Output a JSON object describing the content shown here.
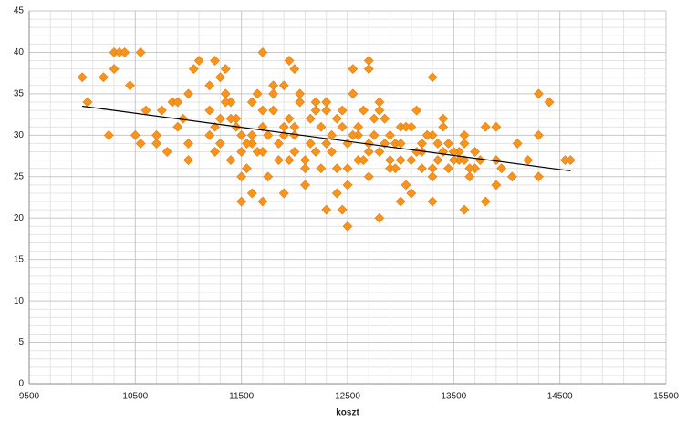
{
  "chart_data": {
    "type": "scatter",
    "x_label": "koszt",
    "color": "#f7941d",
    "x": [
      10000,
      10050,
      10200,
      10250,
      10300,
      10300,
      10350,
      10400,
      10550,
      10450,
      10500,
      10550,
      10600,
      10700,
      10700,
      10800,
      10750,
      10850,
      10900,
      10900,
      10950,
      11000,
      11000,
      11000,
      11050,
      11100,
      11200,
      11250,
      11300,
      11350,
      11700,
      11950,
      12000,
      12550,
      12700,
      12700,
      13300,
      14300,
      14400,
      14300,
      14300,
      14550,
      14600,
      14200,
      14050,
      14100,
      13600,
      13800,
      12500,
      12450,
      12800,
      12300,
      11500,
      11600,
      11700,
      11900,
      13000,
      13300,
      13900,
      13950,
      13800,
      13900,
      11200,
      11250,
      11300,
      11350,
      11400,
      11450,
      11500,
      11550,
      11600,
      11650,
      11700,
      11750,
      11800,
      11850,
      11900,
      11950,
      12000,
      12050,
      12100,
      12150,
      12200,
      12250,
      12300,
      12350,
      12400,
      12450,
      12500,
      12550,
      12600,
      12650,
      12700,
      12750,
      12800,
      12850,
      12900,
      12950,
      13000,
      13050,
      13100,
      13150,
      13200,
      13250,
      13300,
      13350,
      13400,
      13450,
      13500,
      13550,
      13600,
      13650,
      11200,
      11300,
      11400,
      11500,
      11600,
      11700,
      11800,
      11900,
      12000,
      12100,
      12200,
      12300,
      12400,
      12500,
      12600,
      12700,
      12800,
      12900,
      13000,
      13100,
      13200,
      13300,
      13400,
      13500,
      13600,
      13700,
      11250,
      11350,
      11450,
      11550,
      11650,
      11750,
      11850,
      11950,
      12050,
      12150,
      12250,
      12350,
      12450,
      12550,
      12650,
      12750,
      12850,
      12950,
      13050,
      13150,
      13250,
      13350,
      13450,
      13550,
      13650,
      13750,
      11400,
      11600,
      11800,
      12000,
      12200,
      12400,
      12600,
      12800,
      13000,
      13200,
      13400,
      13600,
      11500,
      11700,
      11900,
      12100,
      12300,
      12500,
      12700,
      12900,
      13100,
      13300,
      13500,
      13700,
      13900
    ],
    "values": [
      37,
      34,
      37,
      30,
      38,
      40,
      40,
      40,
      40,
      36,
      30,
      29,
      33,
      30,
      29,
      28,
      33,
      34,
      34,
      31,
      32,
      27,
      29,
      35,
      38,
      39,
      36,
      39,
      37,
      38,
      40,
      39,
      38,
      38,
      39,
      38,
      37,
      35,
      34,
      30,
      25,
      27,
      27,
      27,
      25,
      29,
      21,
      22,
      19,
      21,
      20,
      21,
      22,
      23,
      22,
      23,
      22,
      22,
      24,
      26,
      31,
      31,
      33,
      31,
      29,
      35,
      27,
      32,
      30,
      26,
      34,
      28,
      31,
      25,
      33,
      29,
      36,
      27,
      30,
      35,
      24,
      32,
      28,
      26,
      34,
      30,
      23,
      31,
      29,
      35,
      27,
      33,
      25,
      30,
      28,
      32,
      26,
      29,
      31,
      24,
      27,
      33,
      28,
      30,
      25,
      29,
      32,
      26,
      28,
      27,
      30,
      25,
      30,
      32,
      34,
      28,
      29,
      33,
      35,
      30,
      31,
      27,
      34,
      29,
      32,
      26,
      30,
      28,
      33,
      27,
      29,
      31,
      26,
      30,
      28,
      27,
      29,
      26,
      28,
      34,
      31,
      29,
      35,
      30,
      27,
      32,
      34,
      29,
      31,
      28,
      33,
      30,
      27,
      32,
      29,
      26,
      31,
      28,
      30,
      27,
      29,
      28,
      26,
      27,
      32,
      30,
      36,
      28,
      33,
      26,
      31,
      34,
      27,
      29,
      31,
      27,
      25,
      28,
      31,
      26,
      33,
      24,
      29,
      30,
      23,
      26,
      28,
      28,
      27
    ],
    "trendline": {
      "x": [
        10000,
        14600
      ],
      "values": [
        33.5,
        25.7
      ],
      "color": "#000000"
    },
    "xlim": [
      9500,
      15500
    ],
    "xticks": [
      9500,
      10500,
      11500,
      12500,
      13500,
      14500,
      15500
    ],
    "ylim": [
      0,
      45
    ],
    "yticks": [
      0,
      5,
      10,
      15,
      20,
      25,
      30,
      35,
      40,
      45
    ],
    "grid": true
  }
}
